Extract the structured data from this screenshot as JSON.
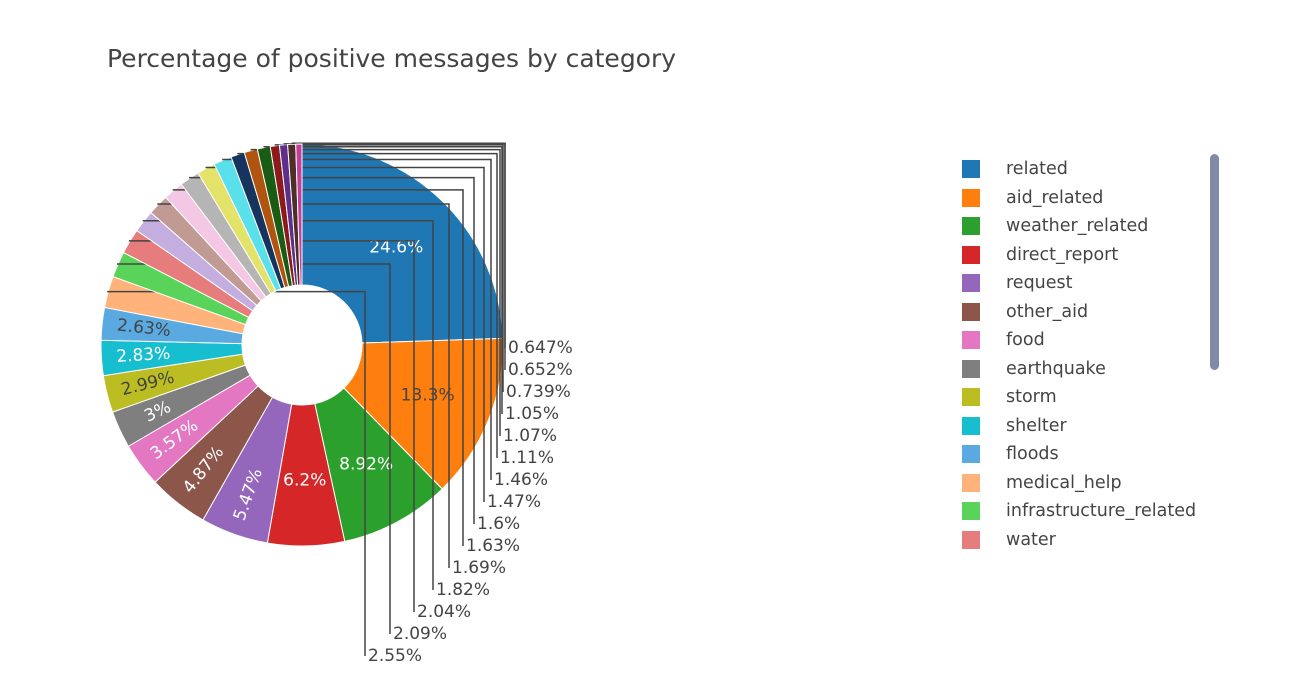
{
  "title": "Percentage of positive messages by category",
  "chart_data": {
    "type": "pie",
    "title": "Percentage of positive messages by category",
    "hole": true,
    "legend_position": "right",
    "categories": [
      "related",
      "aid_related",
      "weather_related",
      "direct_report",
      "request",
      "other_aid",
      "food",
      "earthquake",
      "storm",
      "shelter",
      "floods",
      "medical_help",
      "infrastructure_related",
      "water",
      "",
      "",
      "",
      "",
      "",
      "",
      "",
      "",
      "",
      "",
      "",
      "",
      ""
    ],
    "values": [
      24.6,
      13.3,
      8.92,
      6.2,
      5.47,
      4.87,
      3.57,
      3,
      2.99,
      2.83,
      2.63,
      2.55,
      2.09,
      2.04,
      1.82,
      1.69,
      1.63,
      1.6,
      1.47,
      1.46,
      1.11,
      1.07,
      1.05,
      0.739,
      0.652,
      0.647,
      0.5
    ],
    "labels": [
      "24.6%",
      "13.3%",
      "8.92%",
      "6.2%",
      "5.47%",
      "4.87%",
      "3.57%",
      "3%",
      "2.99%",
      "2.83%",
      "2.63%",
      "2.55%",
      "2.09%",
      "2.04%",
      "1.82%",
      "1.69%",
      "1.63%",
      "1.6%",
      "1.47%",
      "1.46%",
      "1.11%",
      "1.07%",
      "1.05%",
      "0.739%",
      "0.652%",
      "0.647%",
      ""
    ],
    "colors": [
      "#1f77b4",
      "#ff7f0e",
      "#2ca02c",
      "#d62728",
      "#9467bd",
      "#8c564b",
      "#e377c2",
      "#7f7f7f",
      "#bcbd22",
      "#17becf",
      "#5aa9e0",
      "#ffb37a",
      "#5ad35a",
      "#e67c7c",
      "#c4aee0",
      "#c09a93",
      "#f4c7e4",
      "#b5b5b5",
      "#e3e36a",
      "#5ae0ea",
      "#16355e",
      "#b05510",
      "#1a5c14",
      "#8c1a1a",
      "#5e2f8a",
      "#4d2f28",
      "#c73e9a"
    ]
  },
  "legend": {
    "items": [
      {
        "label": "related",
        "color": "#1f77b4"
      },
      {
        "label": "aid_related",
        "color": "#ff7f0e"
      },
      {
        "label": "weather_related",
        "color": "#2ca02c"
      },
      {
        "label": "direct_report",
        "color": "#d62728"
      },
      {
        "label": "request",
        "color": "#9467bd"
      },
      {
        "label": "other_aid",
        "color": "#8c564b"
      },
      {
        "label": "food",
        "color": "#e377c2"
      },
      {
        "label": "earthquake",
        "color": "#7f7f7f"
      },
      {
        "label": "storm",
        "color": "#bcbd22"
      },
      {
        "label": "shelter",
        "color": "#17becf"
      },
      {
        "label": "floods",
        "color": "#5aa9e0"
      },
      {
        "label": "medical_help",
        "color": "#ffb37a"
      },
      {
        "label": "infrastructure_related",
        "color": "#5ad35a"
      },
      {
        "label": "water",
        "color": "#e67c7c"
      }
    ]
  }
}
